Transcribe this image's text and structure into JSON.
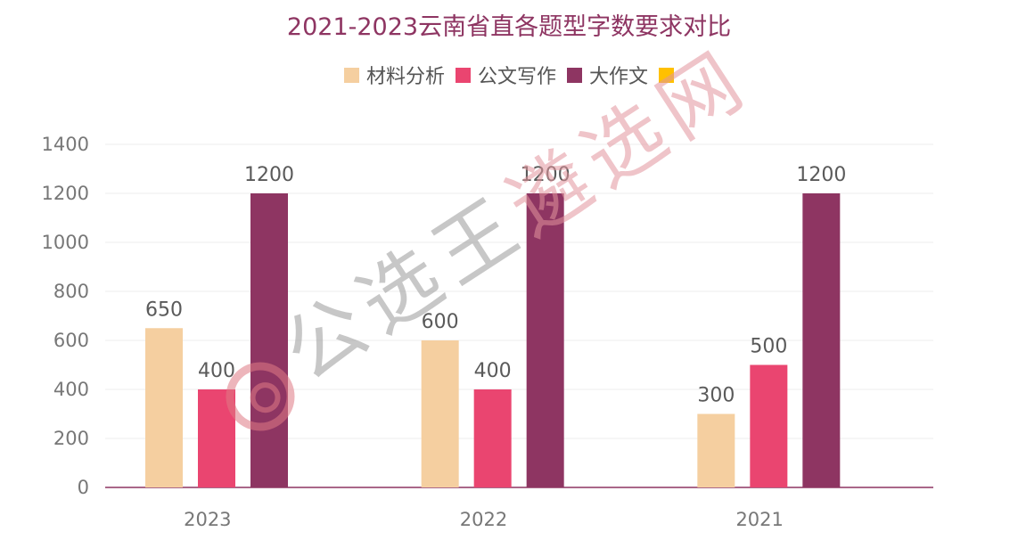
{
  "chart_data": {
    "type": "bar",
    "title": "2021-2023云南省直各题型字数要求对比",
    "categories": [
      "2023",
      "2022",
      "2021"
    ],
    "series": [
      {
        "name": "材料分析",
        "color": "#f5cfa0",
        "values": [
          650,
          600,
          300
        ]
      },
      {
        "name": "公文写作",
        "color": "#ea4570",
        "values": [
          400,
          400,
          500
        ]
      },
      {
        "name": "大作文",
        "color": "#8e3562",
        "values": [
          1200,
          1200,
          1200
        ]
      },
      {
        "name": "",
        "color": "#ffc000",
        "values": [
          null,
          null,
          null
        ]
      }
    ],
    "ylim": [
      0,
      1400
    ],
    "yticks": [
      0,
      200,
      400,
      600,
      800,
      1000,
      1200,
      1400
    ],
    "grid": true,
    "legend": "top"
  },
  "watermark": {
    "text": "公选王遴选网"
  }
}
